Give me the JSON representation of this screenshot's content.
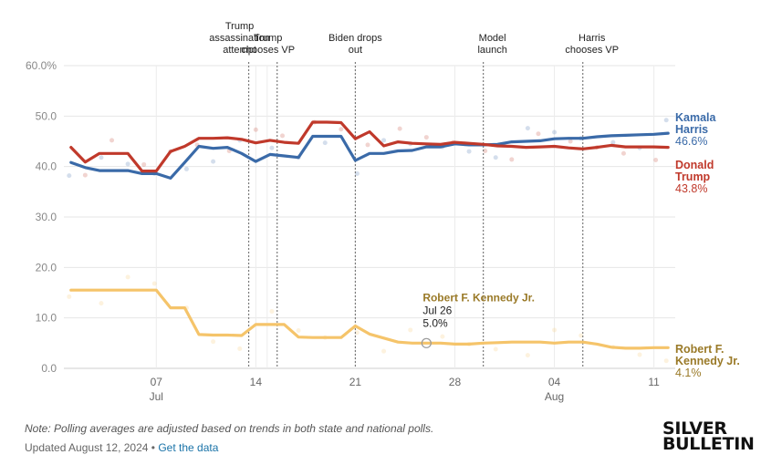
{
  "chart_data": {
    "type": "line",
    "title": "",
    "xlabel": "",
    "ylabel": "",
    "ylim": [
      0,
      60
    ],
    "y_ticks": [
      "0.0",
      "10.0",
      "20.0",
      "30.0",
      "40.0",
      "50.0",
      "60.0%"
    ],
    "y_tick_values": [
      0,
      10,
      20,
      30,
      40,
      50,
      60
    ],
    "x_ticks": [
      {
        "day": 7,
        "label": "07",
        "month": "Jul"
      },
      {
        "day": 14,
        "label": "14",
        "month": ""
      },
      {
        "day": 21,
        "label": "21",
        "month": ""
      },
      {
        "day": 28,
        "label": "28",
        "month": ""
      },
      {
        "day": 35,
        "label": "04",
        "month": "Aug"
      },
      {
        "day": 42,
        "label": "11",
        "month": ""
      }
    ],
    "x_range_days": [
      0.5,
      43.5
    ],
    "x_unit": "days since June 30, 2024",
    "series": [
      {
        "name": "Kamala Harris",
        "label_lines": [
          "Kamala",
          "Harris"
        ],
        "final_value_label": "46.6%",
        "color": "#3a6aa8",
        "x": [
          1,
          2,
          3,
          4,
          5,
          6,
          7,
          8,
          9,
          10,
          11,
          12,
          13,
          14,
          15,
          16,
          17,
          18,
          19,
          20,
          21,
          22,
          23,
          24,
          25,
          26,
          27,
          28,
          29,
          30,
          31,
          32,
          33,
          34,
          35,
          36,
          37,
          38,
          39,
          40,
          41,
          42,
          43
        ],
        "values": [
          40.8,
          39.8,
          39.2,
          39.2,
          39.2,
          38.6,
          38.6,
          37.7,
          40.8,
          44.0,
          43.6,
          43.8,
          42.6,
          41.0,
          42.4,
          42.1,
          41.8,
          46.0,
          46.0,
          46.0,
          41.2,
          42.6,
          42.6,
          43.1,
          43.2,
          43.9,
          43.9,
          44.5,
          44.3,
          44.3,
          44.4,
          44.9,
          45.0,
          45.1,
          45.5,
          45.6,
          45.6,
          45.9,
          46.1,
          46.2,
          46.3,
          46.4,
          46.6
        ]
      },
      {
        "name": "Donald Trump",
        "label_lines": [
          "Donald",
          "Trump"
        ],
        "final_value_label": "43.8%",
        "color": "#c0392b",
        "x": [
          1,
          2,
          3,
          4,
          5,
          6,
          7,
          8,
          9,
          10,
          11,
          12,
          13,
          14,
          15,
          16,
          17,
          18,
          19,
          20,
          21,
          22,
          23,
          24,
          25,
          26,
          27,
          28,
          29,
          30,
          31,
          32,
          33,
          34,
          35,
          36,
          37,
          38,
          39,
          40,
          41,
          42,
          43
        ],
        "values": [
          43.8,
          40.9,
          42.6,
          42.6,
          42.6,
          39.1,
          39.1,
          43.0,
          44.0,
          45.6,
          45.6,
          45.7,
          45.4,
          44.7,
          45.2,
          44.8,
          44.6,
          48.8,
          48.8,
          48.7,
          45.5,
          46.9,
          44.1,
          44.9,
          44.6,
          44.5,
          44.4,
          44.8,
          44.6,
          44.4,
          44.1,
          44.0,
          43.8,
          43.9,
          44.0,
          43.7,
          43.5,
          43.8,
          44.2,
          43.9,
          43.9,
          43.9,
          43.8
        ]
      },
      {
        "name": "Robert F. Kennedy Jr.",
        "label_lines": [
          "Robert F.",
          "Kennedy Jr."
        ],
        "final_value_label": "4.1%",
        "color": "#f5c46a",
        "label_color": "#9a7a28",
        "x": [
          1,
          2,
          3,
          4,
          5,
          6,
          7,
          8,
          9,
          10,
          11,
          12,
          13,
          14,
          15,
          16,
          17,
          18,
          19,
          20,
          21,
          22,
          23,
          24,
          25,
          26,
          27,
          28,
          29,
          30,
          31,
          32,
          33,
          34,
          35,
          36,
          37,
          38,
          39,
          40,
          41,
          42,
          43
        ],
        "values": [
          15.5,
          15.5,
          15.5,
          15.5,
          15.5,
          15.5,
          15.5,
          12.0,
          12.0,
          6.7,
          6.6,
          6.6,
          6.5,
          8.7,
          8.7,
          8.7,
          6.2,
          6.1,
          6.1,
          6.1,
          8.4,
          6.8,
          6.0,
          5.2,
          5.0,
          5.0,
          5.0,
          4.8,
          4.8,
          5.0,
          5.1,
          5.2,
          5.2,
          5.2,
          5.0,
          5.2,
          5.2,
          4.8,
          4.2,
          4.0,
          4.0,
          4.1,
          4.1
        ]
      }
    ],
    "events": [
      {
        "day": 13.5,
        "lines": [
          "Trump",
          "assassination",
          "attempt"
        ]
      },
      {
        "day": 15.5,
        "lines": [
          "Trump",
          "chooses VP"
        ]
      },
      {
        "day": 21.0,
        "lines": [
          "Biden drops",
          "out"
        ]
      },
      {
        "day": 30.0,
        "lines": [
          "Model",
          "launch"
        ]
      },
      {
        "day": 37.0,
        "lines": [
          "Harris",
          "chooses VP"
        ]
      }
    ],
    "extra_gridlines_days": [
      14.8
    ],
    "tooltip": {
      "series": "Robert F. Kennedy Jr.",
      "day": 26,
      "value": 5.0,
      "name": "Robert F. Kennedy Jr.",
      "date": "Jul 26",
      "value_label": "5.0%"
    }
  },
  "footer": {
    "note": "Note: Polling averages are adjusted based on trends in both state and national polls.",
    "updated": "Updated August 12, 2024",
    "separator": "•",
    "link": "Get the data"
  },
  "logo": {
    "line1": "SILVER",
    "line2": "BULLETIN"
  }
}
